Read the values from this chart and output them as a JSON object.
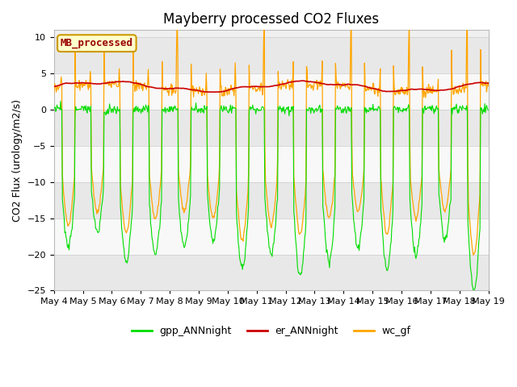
{
  "title": "Mayberry processed CO2 Fluxes",
  "ylabel": "CO2 Flux (urology/m2/s)",
  "ylim": [
    -25,
    11
  ],
  "yticks": [
    -25,
    -20,
    -15,
    -10,
    -5,
    0,
    5,
    10
  ],
  "background_color": "#ffffff",
  "plot_bg_color": "#f0f0f0",
  "stripe_colors": [
    "#e8e8e8",
    "#f8f8f8"
  ],
  "legend_label": "MB_processed",
  "legend_label_color": "#990000",
  "legend_bg_color": "#ffffcc",
  "legend_border_color": "#cc9900",
  "line_colors": {
    "gpp": "#00dd00",
    "er": "#cc0000",
    "wc": "#ffa500"
  },
  "line_widths": {
    "gpp": 0.8,
    "er": 1.2,
    "wc": 0.9
  },
  "series_labels": {
    "gpp": "gpp_ANNnight",
    "er": "er_ANNnight",
    "wc": "wc_gf"
  },
  "title_fontsize": 12,
  "axis_fontsize": 9,
  "tick_fontsize": 8
}
